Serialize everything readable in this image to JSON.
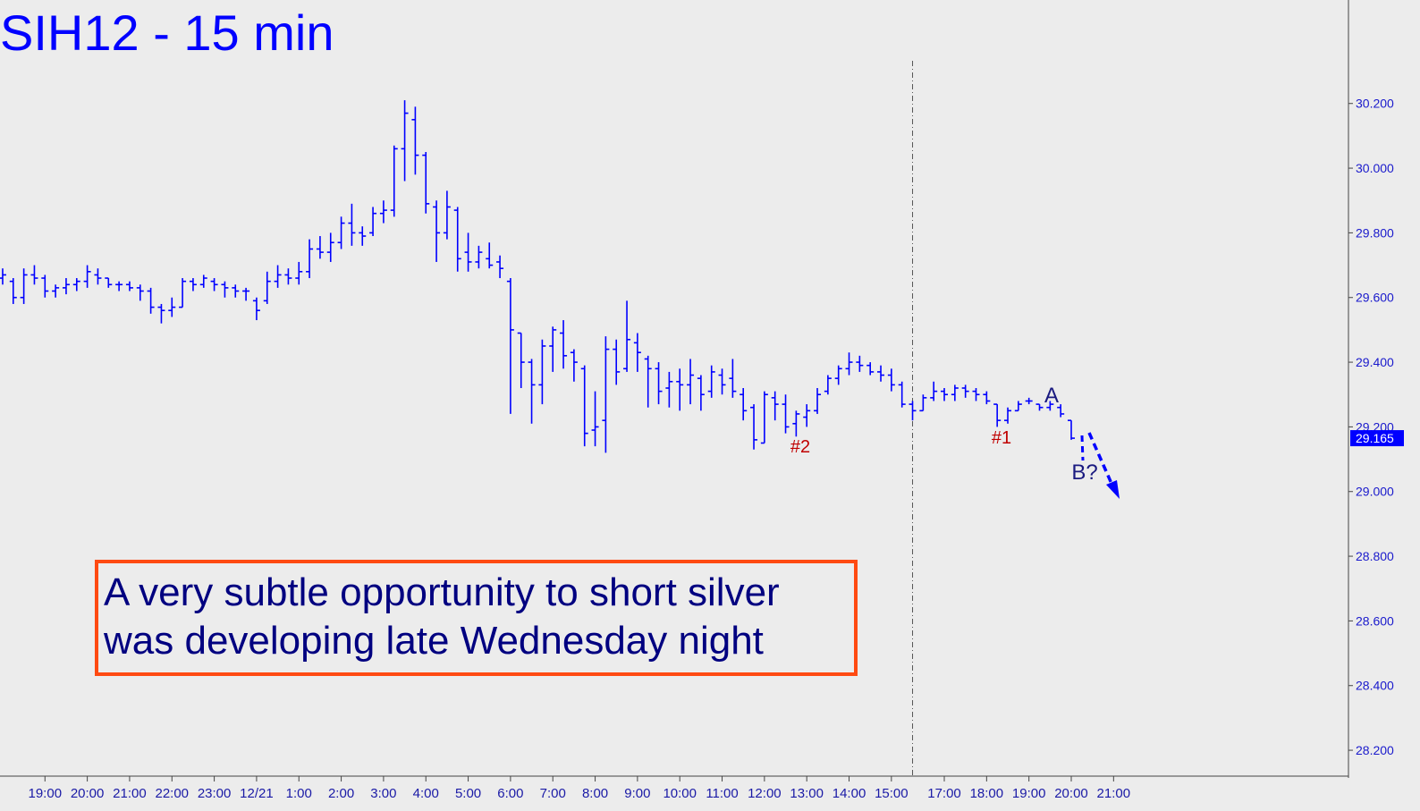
{
  "chart_data": {
    "type": "ohlc",
    "title": "SIH12 - 15 min",
    "color": "#0000ff",
    "xlim": [
      -0.25,
      127.2
    ],
    "ylim": [
      28.12,
      30.52
    ],
    "yticks": [
      {
        "value": 28.2,
        "label": "28.200"
      },
      {
        "value": 28.4,
        "label": "28.400"
      },
      {
        "value": 28.6,
        "label": "28.600"
      },
      {
        "value": 28.8,
        "label": "28.800"
      },
      {
        "value": 29.0,
        "label": "29.000"
      },
      {
        "value": 29.2,
        "label": "29.200"
      },
      {
        "value": 29.4,
        "label": "29.400"
      },
      {
        "value": 29.6,
        "label": "29.600"
      },
      {
        "value": 29.8,
        "label": "29.800"
      },
      {
        "value": 30.0,
        "label": "30.000"
      },
      {
        "value": 30.2,
        "label": "30.200"
      }
    ],
    "xticks": [
      {
        "value": 4,
        "label": "19:00"
      },
      {
        "value": 8,
        "label": "20:00"
      },
      {
        "value": 12,
        "label": "21:00"
      },
      {
        "value": 16,
        "label": "22:00"
      },
      {
        "value": 20,
        "label": "23:00"
      },
      {
        "value": 24,
        "label": "12/21"
      },
      {
        "value": 28,
        "label": "1:00"
      },
      {
        "value": 32,
        "label": "2:00"
      },
      {
        "value": 36,
        "label": "3:00"
      },
      {
        "value": 40,
        "label": "4:00"
      },
      {
        "value": 44,
        "label": "5:00"
      },
      {
        "value": 48,
        "label": "6:00"
      },
      {
        "value": 52,
        "label": "7:00"
      },
      {
        "value": 56,
        "label": "8:00"
      },
      {
        "value": 60,
        "label": "9:00"
      },
      {
        "value": 64,
        "label": "10:00"
      },
      {
        "value": 68,
        "label": "11:00"
      },
      {
        "value": 72,
        "label": "12:00"
      },
      {
        "value": 76,
        "label": "13:00"
      },
      {
        "value": 80,
        "label": "14:00"
      },
      {
        "value": 84,
        "label": "15:00"
      },
      {
        "value": 89,
        "label": "17:00"
      },
      {
        "value": 93,
        "label": "18:00"
      },
      {
        "value": 97,
        "label": "19:00"
      },
      {
        "value": 101,
        "label": "20:00"
      },
      {
        "value": 105,
        "label": "21:00"
      }
    ],
    "session_break": 86,
    "last_price": 29.165,
    "annotations": [
      "#2",
      "#1",
      "A",
      "B?"
    ],
    "note": [
      "A very subtle opportunity to short silver",
      "was developing late Wednesday night"
    ],
    "bars": [
      {
        "open": 29.66,
        "high": 29.69,
        "low": 29.64,
        "close": 29.67
      },
      {
        "open": 29.65,
        "high": 29.66,
        "low": 29.58,
        "close": 29.6
      },
      {
        "open": 29.6,
        "high": 29.69,
        "low": 29.58,
        "close": 29.67
      },
      {
        "open": 29.67,
        "high": 29.7,
        "low": 29.64,
        "close": 29.66
      },
      {
        "open": 29.66,
        "high": 29.67,
        "low": 29.6,
        "close": 29.62
      },
      {
        "open": 29.62,
        "high": 29.64,
        "low": 29.6,
        "close": 29.63
      },
      {
        "open": 29.63,
        "high": 29.66,
        "low": 29.61,
        "close": 29.64
      },
      {
        "open": 29.64,
        "high": 29.66,
        "low": 29.62,
        "close": 29.65
      },
      {
        "open": 29.65,
        "high": 29.7,
        "low": 29.63,
        "close": 29.68
      },
      {
        "open": 29.67,
        "high": 29.69,
        "low": 29.64,
        "close": 29.66
      },
      {
        "open": 29.66,
        "high": 29.66,
        "low": 29.63,
        "close": 29.64
      },
      {
        "open": 29.64,
        "high": 29.65,
        "low": 29.62,
        "close": 29.64
      },
      {
        "open": 29.64,
        "high": 29.65,
        "low": 29.62,
        "close": 29.63
      },
      {
        "open": 29.63,
        "high": 29.64,
        "low": 29.59,
        "close": 29.62
      },
      {
        "open": 29.62,
        "high": 29.63,
        "low": 29.55,
        "close": 29.57
      },
      {
        "open": 29.57,
        "high": 29.58,
        "low": 29.52,
        "close": 29.56
      },
      {
        "open": 29.56,
        "high": 29.6,
        "low": 29.54,
        "close": 29.57
      },
      {
        "open": 29.57,
        "high": 29.66,
        "low": 29.57,
        "close": 29.65
      },
      {
        "open": 29.65,
        "high": 29.66,
        "low": 29.62,
        "close": 29.64
      },
      {
        "open": 29.64,
        "high": 29.67,
        "low": 29.63,
        "close": 29.66
      },
      {
        "open": 29.65,
        "high": 29.66,
        "low": 29.62,
        "close": 29.64
      },
      {
        "open": 29.64,
        "high": 29.65,
        "low": 29.6,
        "close": 29.63
      },
      {
        "open": 29.63,
        "high": 29.64,
        "low": 29.6,
        "close": 29.62
      },
      {
        "open": 29.62,
        "high": 29.63,
        "low": 29.59,
        "close": 29.62
      },
      {
        "open": 29.59,
        "high": 29.6,
        "low": 29.53,
        "close": 29.56
      },
      {
        "open": 29.59,
        "high": 29.68,
        "low": 29.58,
        "close": 29.65
      },
      {
        "open": 29.65,
        "high": 29.7,
        "low": 29.63,
        "close": 29.67
      },
      {
        "open": 29.67,
        "high": 29.69,
        "low": 29.64,
        "close": 29.66
      },
      {
        "open": 29.66,
        "high": 29.71,
        "low": 29.64,
        "close": 29.68
      },
      {
        "open": 29.68,
        "high": 29.78,
        "low": 29.66,
        "close": 29.75
      },
      {
        "open": 29.75,
        "high": 29.79,
        "low": 29.72,
        "close": 29.74
      },
      {
        "open": 29.74,
        "high": 29.8,
        "low": 29.71,
        "close": 29.77
      },
      {
        "open": 29.77,
        "high": 29.85,
        "low": 29.75,
        "close": 29.83
      },
      {
        "open": 29.83,
        "high": 29.89,
        "low": 29.76,
        "close": 29.8
      },
      {
        "open": 29.8,
        "high": 29.82,
        "low": 29.76,
        "close": 29.79
      },
      {
        "open": 29.8,
        "high": 29.88,
        "low": 29.79,
        "close": 29.86
      },
      {
        "open": 29.86,
        "high": 29.9,
        "low": 29.83,
        "close": 29.87
      },
      {
        "open": 29.87,
        "high": 30.07,
        "low": 29.85,
        "close": 30.06
      },
      {
        "open": 30.06,
        "high": 30.21,
        "low": 29.96,
        "close": 30.17
      },
      {
        "open": 30.15,
        "high": 30.19,
        "low": 29.98,
        "close": 30.04
      },
      {
        "open": 30.04,
        "high": 30.05,
        "low": 29.86,
        "close": 29.89
      },
      {
        "open": 29.88,
        "high": 29.9,
        "low": 29.71,
        "close": 29.8
      },
      {
        "open": 29.8,
        "high": 29.93,
        "low": 29.78,
        "close": 29.88
      },
      {
        "open": 29.87,
        "high": 29.88,
        "low": 29.68,
        "close": 29.72
      },
      {
        "open": 29.74,
        "high": 29.8,
        "low": 29.68,
        "close": 29.71
      },
      {
        "open": 29.71,
        "high": 29.76,
        "low": 29.69,
        "close": 29.74
      },
      {
        "open": 29.72,
        "high": 29.77,
        "low": 29.69,
        "close": 29.7
      },
      {
        "open": 29.71,
        "high": 29.73,
        "low": 29.66,
        "close": 29.69
      },
      {
        "open": 29.65,
        "high": 29.66,
        "low": 29.24,
        "close": 29.5
      },
      {
        "open": 29.49,
        "high": 29.49,
        "low": 29.32,
        "close": 29.4
      },
      {
        "open": 29.4,
        "high": 29.41,
        "low": 29.21,
        "close": 29.33
      },
      {
        "open": 29.33,
        "high": 29.47,
        "low": 29.27,
        "close": 29.45
      },
      {
        "open": 29.45,
        "high": 29.51,
        "low": 29.37,
        "close": 29.5
      },
      {
        "open": 29.49,
        "high": 29.53,
        "low": 29.38,
        "close": 29.42
      },
      {
        "open": 29.43,
        "high": 29.44,
        "low": 29.34,
        "close": 29.4
      },
      {
        "open": 29.38,
        "high": 29.39,
        "low": 29.14,
        "close": 29.18
      },
      {
        "open": 29.19,
        "high": 29.31,
        "low": 29.14,
        "close": 29.2
      },
      {
        "open": 29.22,
        "high": 29.48,
        "low": 29.12,
        "close": 29.44
      },
      {
        "open": 29.44,
        "high": 29.47,
        "low": 29.33,
        "close": 29.37
      },
      {
        "open": 29.38,
        "high": 29.59,
        "low": 29.37,
        "close": 29.47
      },
      {
        "open": 29.46,
        "high": 29.49,
        "low": 29.37,
        "close": 29.43
      },
      {
        "open": 29.41,
        "high": 29.42,
        "low": 29.26,
        "close": 29.38
      },
      {
        "open": 29.38,
        "high": 29.4,
        "low": 29.27,
        "close": 29.31
      },
      {
        "open": 29.32,
        "high": 29.37,
        "low": 29.26,
        "close": 29.34
      },
      {
        "open": 29.34,
        "high": 29.38,
        "low": 29.25,
        "close": 29.33
      },
      {
        "open": 29.33,
        "high": 29.41,
        "low": 29.27,
        "close": 29.36
      },
      {
        "open": 29.35,
        "high": 29.36,
        "low": 29.25,
        "close": 29.3
      },
      {
        "open": 29.31,
        "high": 29.39,
        "low": 29.29,
        "close": 29.37
      },
      {
        "open": 29.36,
        "high": 29.38,
        "low": 29.3,
        "close": 29.33
      },
      {
        "open": 29.35,
        "high": 29.41,
        "low": 29.29,
        "close": 29.31
      },
      {
        "open": 29.3,
        "high": 29.32,
        "low": 29.22,
        "close": 29.25
      },
      {
        "open": 29.26,
        "high": 29.27,
        "low": 29.13,
        "close": 29.16
      },
      {
        "open": 29.15,
        "high": 29.31,
        "low": 29.15,
        "close": 29.3
      },
      {
        "open": 29.29,
        "high": 29.31,
        "low": 29.22,
        "close": 29.27
      },
      {
        "open": 29.27,
        "high": 29.3,
        "low": 29.18,
        "close": 29.2
      },
      {
        "open": 29.21,
        "high": 29.25,
        "low": 29.17,
        "close": 29.24
      },
      {
        "open": 29.23,
        "high": 29.27,
        "low": 29.2,
        "close": 29.25
      },
      {
        "open": 29.25,
        "high": 29.32,
        "low": 29.24,
        "close": 29.3
      },
      {
        "open": 29.31,
        "high": 29.36,
        "low": 29.3,
        "close": 29.35
      },
      {
        "open": 29.35,
        "high": 29.39,
        "low": 29.33,
        "close": 29.38
      },
      {
        "open": 29.38,
        "high": 29.43,
        "low": 29.36,
        "close": 29.4
      },
      {
        "open": 29.4,
        "high": 29.42,
        "low": 29.37,
        "close": 29.39
      },
      {
        "open": 29.39,
        "high": 29.4,
        "low": 29.36,
        "close": 29.37
      },
      {
        "open": 29.37,
        "high": 29.39,
        "low": 29.34,
        "close": 29.36
      },
      {
        "open": 29.36,
        "high": 29.38,
        "low": 29.31,
        "close": 29.33
      },
      {
        "open": 29.33,
        "high": 29.34,
        "low": 29.26,
        "close": 29.27
      },
      {
        "open": 29.27,
        "high": 29.28,
        "low": 29.22,
        "close": 29.25
      },
      {
        "open": 29.25,
        "high": 29.3,
        "low": 29.25,
        "close": 29.29
      },
      {
        "open": 29.29,
        "high": 29.34,
        "low": 29.28,
        "close": 29.31
      },
      {
        "open": 29.31,
        "high": 29.32,
        "low": 29.28,
        "close": 29.3
      },
      {
        "open": 29.3,
        "high": 29.33,
        "low": 29.28,
        "close": 29.32
      },
      {
        "open": 29.32,
        "high": 29.33,
        "low": 29.29,
        "close": 29.31
      },
      {
        "open": 29.31,
        "high": 29.32,
        "low": 29.28,
        "close": 29.3
      },
      {
        "open": 29.3,
        "high": 29.31,
        "low": 29.27,
        "close": 29.28
      },
      {
        "open": 29.27,
        "high": 29.27,
        "low": 29.2,
        "close": 29.22
      },
      {
        "open": 29.22,
        "high": 29.26,
        "low": 29.21,
        "close": 29.25
      },
      {
        "open": 29.25,
        "high": 29.28,
        "low": 29.25,
        "close": 29.27
      },
      {
        "open": 29.28,
        "high": 29.29,
        "low": 29.27,
        "close": 29.28
      },
      {
        "open": 29.27,
        "high": 29.27,
        "low": 29.25,
        "close": 29.26
      },
      {
        "open": 29.26,
        "high": 29.28,
        "low": 29.25,
        "close": 29.27
      },
      {
        "open": 29.26,
        "high": 29.27,
        "low": 29.23,
        "close": 29.24
      },
      {
        "open": 29.22,
        "high": 29.22,
        "low": 29.16,
        "close": 29.165
      }
    ]
  }
}
